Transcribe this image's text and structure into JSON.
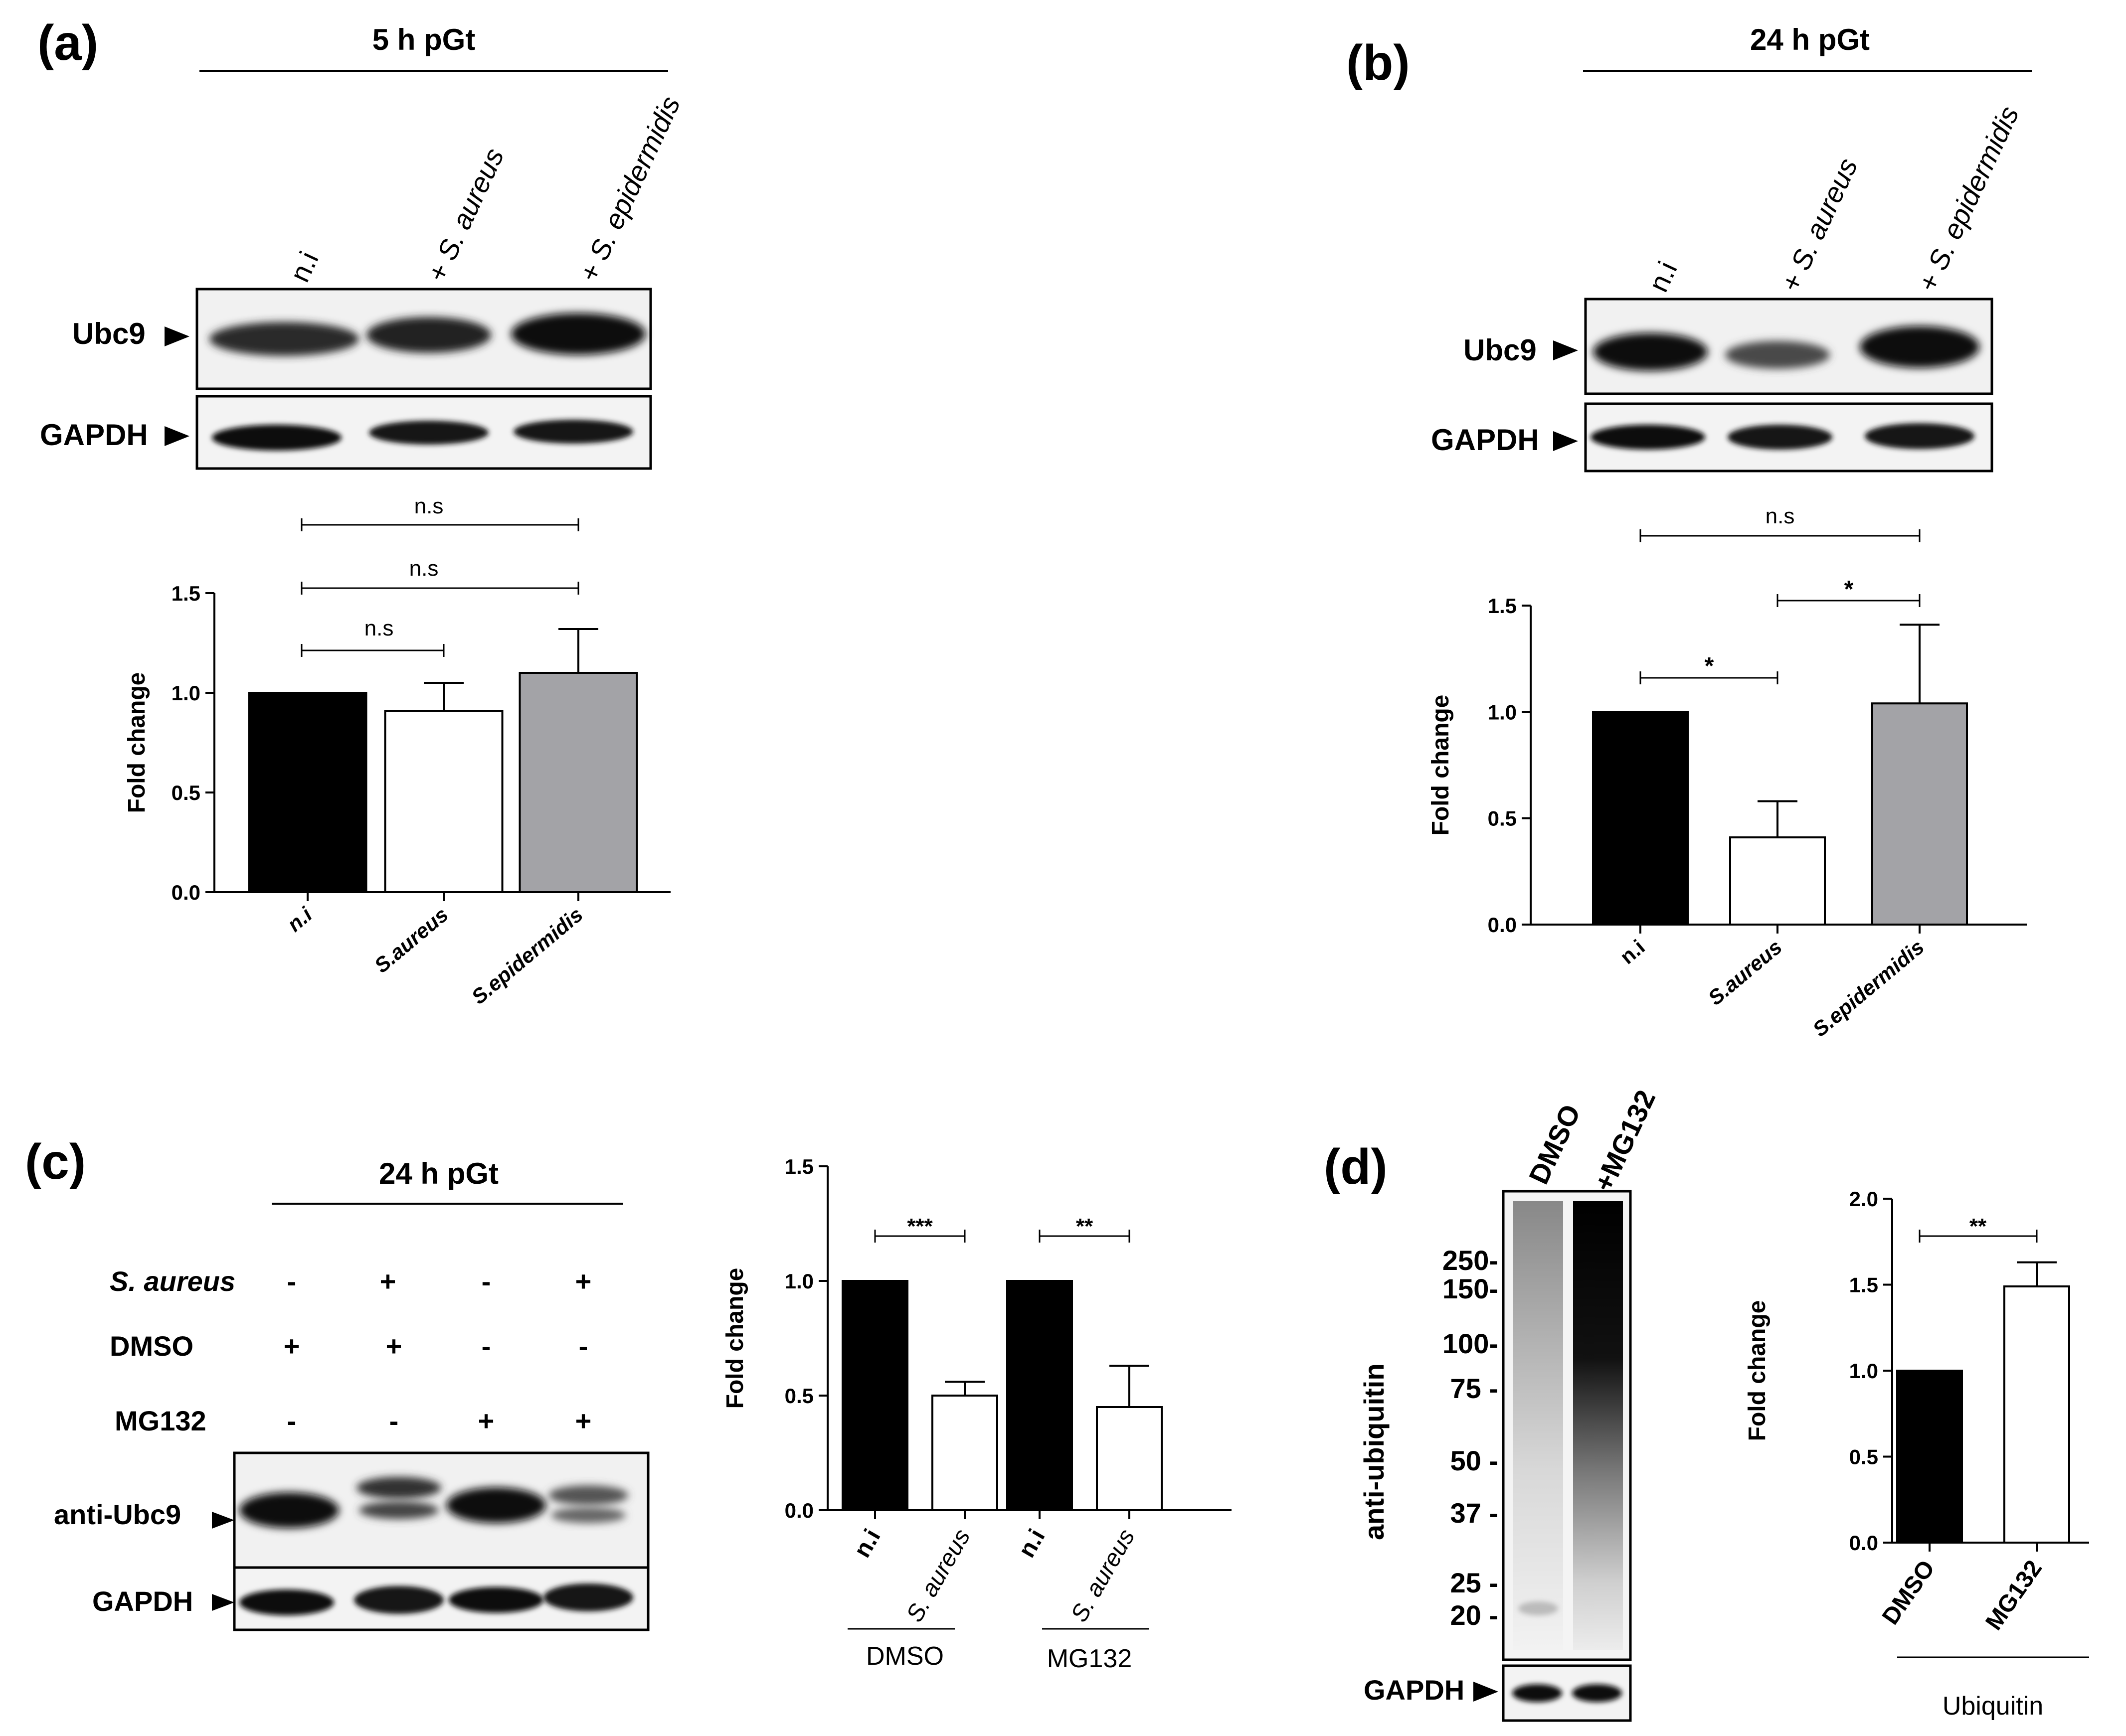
{
  "panels": {
    "a": {
      "letter": "(a)",
      "header": "5 h pGt",
      "lanes": [
        "n.i",
        "+ S. aureus",
        "+ S. epidermidis"
      ],
      "blot_labels": [
        "Ubc9",
        "GAPDH"
      ],
      "significance": [
        "n.s",
        "n.s",
        "n.s"
      ]
    },
    "b": {
      "letter": "(b)",
      "header": "24 h pGt",
      "lanes": [
        "n.i",
        "+ S. aureus",
        "+ S. epidermidis"
      ],
      "blot_labels": [
        "Ubc9",
        "GAPDH"
      ],
      "significance": [
        "n.s",
        "*",
        "*"
      ]
    },
    "c": {
      "letter": "(c)",
      "header": "24 h pGt",
      "condition_rows": [
        {
          "label": "S. aureus",
          "values": [
            "-",
            "+",
            "-",
            "+"
          ]
        },
        {
          "label": "DMSO",
          "values": [
            "+",
            "+",
            "-",
            "-"
          ]
        },
        {
          "label": "MG132",
          "values": [
            "-",
            "-",
            "+",
            "+"
          ]
        }
      ],
      "blot_labels": [
        "anti-Ubc9",
        "GAPDH"
      ],
      "significance": [
        "***",
        "**"
      ],
      "groups": [
        "DMSO",
        "MG132"
      ]
    },
    "d": {
      "letter": "(d)",
      "lanes": [
        "DMSO",
        "+MG132"
      ],
      "blot_labels": [
        "anti-ubiquitin",
        "GAPDH"
      ],
      "markers": [
        "250-",
        "150-",
        "100-",
        "75 -",
        "50 -",
        "37 -",
        "25 -",
        "20 -"
      ],
      "significance": [
        "**"
      ],
      "group": "Ubiquitin"
    }
  },
  "chart_data": [
    {
      "type": "bar",
      "panel": "a",
      "categories": [
        "n.i",
        "S.aureus",
        "S.epidermidis"
      ],
      "values": [
        1.0,
        0.91,
        1.1
      ],
      "errors": [
        0,
        0.14,
        0.22
      ],
      "colors": [
        "#000000",
        "#ffffff",
        "#a3a3a7"
      ],
      "ylabel": "Fold change",
      "ylim": [
        0,
        1.5
      ],
      "yticks": [
        "0.0",
        "0.5",
        "1.0",
        "1.5"
      ]
    },
    {
      "type": "bar",
      "panel": "b",
      "categories": [
        "n.i",
        "S.aureus",
        "S.epidermidis"
      ],
      "values": [
        1.0,
        0.41,
        1.04
      ],
      "errors": [
        0,
        0.17,
        0.37
      ],
      "colors": [
        "#000000",
        "#ffffff",
        "#a3a3a7"
      ],
      "ylabel": "Fold change",
      "ylim": [
        0,
        1.5
      ],
      "yticks": [
        "0.0",
        "0.5",
        "1.0",
        "1.5"
      ]
    },
    {
      "type": "bar",
      "panel": "c",
      "categories": [
        "n.i",
        "S. aureus",
        "n.i",
        "S. aureus"
      ],
      "values": [
        1.0,
        0.5,
        1.0,
        0.45
      ],
      "errors": [
        0,
        0.06,
        0,
        0.18
      ],
      "colors": [
        "#000000",
        "#ffffff",
        "#000000",
        "#ffffff"
      ],
      "ylabel": "Fold change",
      "ylim": [
        0,
        1.5
      ],
      "yticks": [
        "0.0",
        "0.5",
        "1.0",
        "1.5"
      ]
    },
    {
      "type": "bar",
      "panel": "d",
      "categories": [
        "DMSO",
        "MG132"
      ],
      "values": [
        1.0,
        1.49
      ],
      "errors": [
        0,
        0.14
      ],
      "colors": [
        "#000000",
        "#ffffff"
      ],
      "ylabel": "Fold change",
      "ylim": [
        0,
        2.0
      ],
      "yticks": [
        "0.0",
        "0.5",
        "1.0",
        "1.5",
        "2.0"
      ]
    }
  ]
}
